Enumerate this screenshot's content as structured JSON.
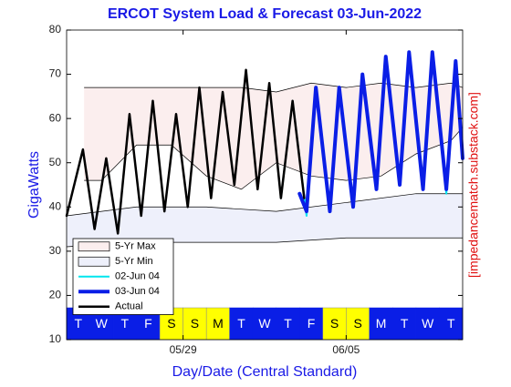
{
  "chart_data": {
    "type": "line",
    "title": "ERCOT System Load & Forecast 03-Jun-2022",
    "ylabel": "GigaWatts",
    "xlabel": "Day/Date (Central Standard)",
    "watermark": "[impedancematch.substack.com]",
    "xlim": [
      0,
      17
    ],
    "xticks": [
      {
        "value": 5,
        "label": "05/29"
      },
      {
        "value": 12,
        "label": "06/05"
      }
    ],
    "ylim": [
      10,
      80
    ],
    "yticks": [
      10,
      20,
      30,
      40,
      50,
      60,
      70,
      80
    ],
    "legend": "lower left",
    "day_labels": [
      "T",
      "W",
      "T",
      "F",
      "S",
      "S",
      "M",
      "T",
      "W",
      "T",
      "F",
      "S",
      "S",
      "M",
      "T",
      "W",
      "T"
    ],
    "day_colors": [
      "#0a1ee6",
      "#0a1ee6",
      "#0a1ee6",
      "#0a1ee6",
      "#ffff00",
      "#ffff00",
      "#ffff00",
      "#0a1ee6",
      "#0a1ee6",
      "#0a1ee6",
      "#0a1ee6",
      "#ffff00",
      "#ffff00",
      "#0a1ee6",
      "#0a1ee6",
      "#0a1ee6",
      "#0a1ee6"
    ],
    "series": [
      {
        "name": "5-Yr Max",
        "kind": "band",
        "color": "#fbeeee",
        "x": [
          0.75,
          1.5,
          3,
          4.5,
          6,
          7.5,
          9,
          10.5,
          12,
          13.5,
          15,
          16.5,
          17
        ],
        "values": [
          67,
          67,
          67,
          67,
          67,
          67,
          66,
          68,
          67,
          68,
          67,
          68,
          67
        ],
        "low": [
          46,
          46,
          54,
          54,
          47,
          44,
          50,
          47,
          46,
          47,
          52,
          55,
          58
        ]
      },
      {
        "name": "5-Yr Min",
        "kind": "band",
        "color": "#eef0fb",
        "x": [
          0,
          3,
          6,
          9,
          12,
          15,
          17
        ],
        "values": [
          38,
          40,
          40,
          39,
          41,
          43,
          43
        ],
        "low": [
          31,
          32,
          32,
          32,
          33,
          33,
          33
        ]
      },
      {
        "name": "02-Jun 04",
        "kind": "line",
        "color": "#00e5ee",
        "line_width": 2,
        "x": [
          9.2,
          9.7,
          10.3,
          10.7,
          11.3,
          11.7,
          12.3,
          12.7,
          13.3,
          13.7,
          14.3,
          14.7,
          15.3,
          15.7,
          16.3,
          16.7,
          17
        ],
        "values": [
          42,
          64,
          38,
          66,
          39,
          67,
          40,
          70,
          45,
          74,
          46,
          75,
          45,
          75,
          43,
          73,
          52
        ]
      },
      {
        "name": "03-Jun 04",
        "kind": "line",
        "color": "#0a1ee6",
        "line_width": 4,
        "x": [
          10,
          10.3,
          10.7,
          11.3,
          11.7,
          12.3,
          12.7,
          13.3,
          13.7,
          14.3,
          14.7,
          15.3,
          15.7,
          16.3,
          16.7,
          17
        ],
        "values": [
          43,
          39,
          67,
          39,
          67,
          40,
          70,
          44,
          74,
          45,
          75,
          44,
          75,
          44,
          73,
          51
        ]
      },
      {
        "name": "Actual",
        "kind": "line",
        "color": "#000000",
        "line_width": 2.5,
        "x": [
          0,
          0.7,
          1.2,
          1.7,
          2.2,
          2.7,
          3.2,
          3.7,
          4.2,
          4.7,
          5.2,
          5.7,
          6.2,
          6.7,
          7.2,
          7.7,
          8.2,
          8.7,
          9.2,
          9.7,
          10.2
        ],
        "values": [
          38,
          53,
          35,
          51,
          34,
          61,
          38,
          64,
          39,
          61,
          40,
          67,
          42,
          66,
          45,
          71,
          44,
          68,
          42,
          64,
          42
        ]
      }
    ]
  }
}
